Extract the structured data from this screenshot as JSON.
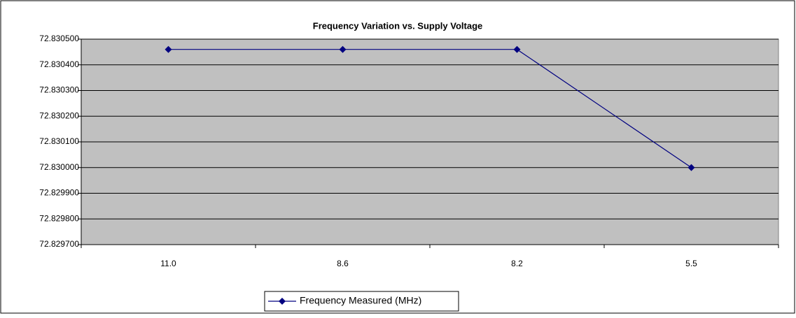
{
  "chart_data": {
    "type": "line",
    "title": "Frequency Variation vs. Supply Voltage",
    "categories": [
      "11.0",
      "8.6",
      "8.2",
      "5.5"
    ],
    "series": [
      {
        "name": "Frequency Measured (MHz)",
        "color": "#000080",
        "values": [
          72.83046,
          72.83046,
          72.83046,
          72.83
        ]
      }
    ],
    "ylim": [
      72.8297,
      72.8305
    ],
    "yticks": [
      {
        "value": 72.8297,
        "label": "72.829700"
      },
      {
        "value": 72.8298,
        "label": "72.829800"
      },
      {
        "value": 72.8299,
        "label": "72.829900"
      },
      {
        "value": 72.83,
        "label": "72.830000"
      },
      {
        "value": 72.8301,
        "label": "72.830100"
      },
      {
        "value": 72.8302,
        "label": "72.830200"
      },
      {
        "value": 72.8303,
        "label": "72.830300"
      },
      {
        "value": 72.8304,
        "label": "72.830400"
      },
      {
        "value": 72.8305,
        "label": "72.830500"
      }
    ],
    "grid": true,
    "legend": "bottom"
  }
}
